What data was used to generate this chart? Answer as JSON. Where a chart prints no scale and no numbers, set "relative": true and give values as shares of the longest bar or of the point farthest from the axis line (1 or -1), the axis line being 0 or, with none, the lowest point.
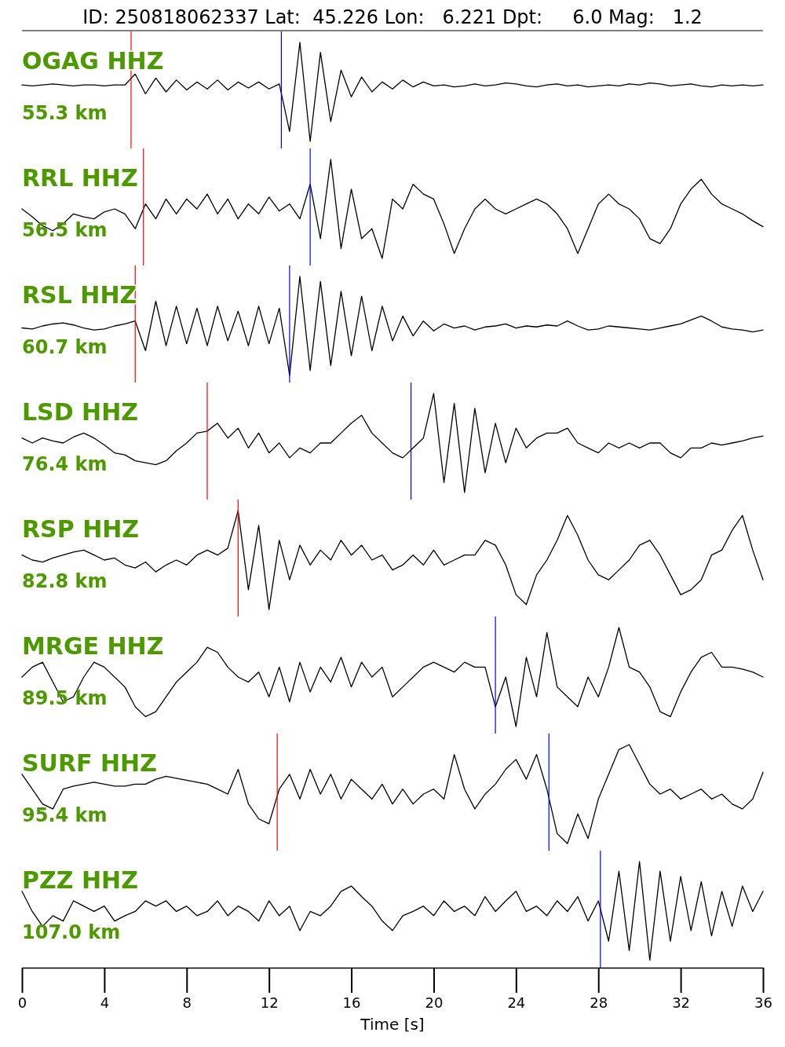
{
  "chart_data": [
    {
      "type": "line",
      "relative": true,
      "title": "OGAG HHZ",
      "subtitle": "55.3 km",
      "annotations": [
        "ID: 250818062337 Lat:  45.226 Lon:   6.221 Dpt:     6.0 Mag:   1.2"
      ],
      "tick_labels": false,
      "xlim": [
        0,
        36
      ],
      "x": [
        0,
        0.5,
        1,
        1.5,
        2,
        2.5,
        3,
        3.5,
        4,
        4.5,
        5,
        5.5,
        6,
        6.5,
        7,
        7.5,
        8,
        8.5,
        9,
        9.5,
        10,
        10.5,
        11,
        11.5,
        12,
        12.5,
        13,
        13.5,
        14,
        14.5,
        15,
        15.5,
        16,
        16.5,
        17,
        17.5,
        18,
        18.5,
        19,
        19.5,
        20,
        20.5,
        21,
        21.5,
        22,
        22.5,
        23,
        23.5,
        24,
        24.5,
        25,
        25.5,
        26,
        26.5,
        27,
        27.5,
        28,
        28.5,
        29,
        29.5,
        30,
        30.5,
        31,
        31.5,
        32,
        32.5,
        33,
        33.5,
        34,
        34.5,
        35,
        35.5,
        36
      ],
      "series": [
        {
          "color": "#000000",
          "values": [
            0.57,
            0.56,
            0.57,
            0.58,
            0.57,
            0.56,
            0.57,
            0.57,
            0.56,
            0.57,
            0.57,
            0.68,
            0.48,
            0.64,
            0.5,
            0.62,
            0.52,
            0.6,
            0.53,
            0.62,
            0.52,
            0.6,
            0.54,
            0.6,
            0.53,
            0.58,
            0.1,
            1,
            0,
            0.9,
            0.2,
            0.72,
            0.45,
            0.65,
            0.5,
            0.6,
            0.53,
            0.62,
            0.55,
            0.6,
            0.56,
            0.57,
            0.55,
            0.56,
            0.58,
            0.56,
            0.57,
            0.59,
            0.58,
            0.56,
            0.55,
            0.57,
            0.58,
            0.56,
            0.57,
            0.55,
            0.56,
            0.57,
            0.56,
            0.58,
            0.57,
            0.59,
            0.58,
            0.56,
            0.57,
            0.58,
            0.56,
            0.55,
            0.57,
            0.56,
            0.57,
            0.56,
            0.57
          ]
        }
      ],
      "ref_lines": [
        {
          "axis": "x",
          "value": 5.3,
          "color": "#ff0000"
        },
        {
          "axis": "x",
          "value": 12.6,
          "color": "#0000ff"
        }
      ]
    },
    {
      "type": "line",
      "relative": true,
      "title": "RRL HHZ",
      "subtitle": "56.5 km",
      "tick_labels": false,
      "xlim": [
        0,
        36
      ],
      "x": [
        0,
        0.5,
        1,
        1.5,
        2,
        2.5,
        3,
        3.5,
        4,
        4.5,
        5,
        5.5,
        6,
        6.5,
        7,
        7.5,
        8,
        8.5,
        9,
        9.5,
        10,
        10.5,
        11,
        11.5,
        12,
        12.5,
        13,
        13.5,
        14,
        14.5,
        15,
        15.5,
        16,
        16.5,
        17,
        17.5,
        18,
        18.5,
        19,
        19.5,
        20,
        20.5,
        21,
        21.5,
        22,
        22.5,
        23,
        23.5,
        24,
        24.5,
        25,
        25.5,
        26,
        26.5,
        27,
        27.5,
        28,
        28.5,
        29,
        29.5,
        30,
        30.5,
        31,
        31.5,
        32,
        32.5,
        33,
        33.5,
        34,
        34.5,
        35,
        35.5,
        36
      ],
      "series": [
        {
          "color": "#000000",
          "values": [
            0.5,
            0.42,
            0.33,
            0.28,
            0.35,
            0.45,
            0.42,
            0.4,
            0.47,
            0.5,
            0.45,
            0.3,
            0.55,
            0.4,
            0.6,
            0.45,
            0.6,
            0.5,
            0.65,
            0.45,
            0.6,
            0.4,
            0.55,
            0.45,
            0.62,
            0.48,
            0.55,
            0.4,
            0.75,
            0.2,
            1,
            0.1,
            0.7,
            0.2,
            0.3,
            0,
            0.6,
            0.5,
            0.75,
            0.65,
            0.6,
            0.35,
            0.05,
            0.3,
            0.5,
            0.6,
            0.5,
            0.45,
            0.5,
            0.55,
            0.6,
            0.55,
            0.45,
            0.3,
            0.05,
            0.3,
            0.55,
            0.65,
            0.55,
            0.5,
            0.4,
            0.2,
            0.15,
            0.3,
            0.55,
            0.7,
            0.8,
            0.65,
            0.55,
            0.5,
            0.45,
            0.38,
            0.32
          ]
        }
      ],
      "ref_lines": [
        {
          "axis": "x",
          "value": 5.9,
          "color": "#ff0000"
        },
        {
          "axis": "x",
          "value": 14,
          "color": "#0000ff"
        }
      ]
    },
    {
      "type": "line",
      "relative": true,
      "title": "RSL HHZ",
      "subtitle": "60.7 km",
      "tick_labels": false,
      "xlim": [
        0,
        36
      ],
      "x": [
        0,
        0.5,
        1,
        1.5,
        2,
        2.5,
        3,
        3.5,
        4,
        4.5,
        5,
        5.5,
        6,
        6.5,
        7,
        7.5,
        8,
        8.5,
        9,
        9.5,
        10,
        10.5,
        11,
        11.5,
        12,
        12.5,
        13,
        13.5,
        14,
        14.5,
        15,
        15.5,
        16,
        16.5,
        17,
        17.5,
        18,
        18.5,
        19,
        19.5,
        20,
        20.5,
        21,
        21.5,
        22,
        22.5,
        23,
        23.5,
        24,
        24.5,
        25,
        25.5,
        26,
        26.5,
        27,
        27.5,
        28,
        28.5,
        29,
        29.5,
        30,
        30.5,
        31,
        31.5,
        32,
        32.5,
        33,
        33.5,
        34,
        34.5,
        35,
        35.5,
        36
      ],
      "series": [
        {
          "color": "#000000",
          "values": [
            0.48,
            0.47,
            0.5,
            0.52,
            0.53,
            0.51,
            0.48,
            0.46,
            0.47,
            0.5,
            0.52,
            0.55,
            0.25,
            0.75,
            0.3,
            0.7,
            0.32,
            0.68,
            0.3,
            0.7,
            0.35,
            0.65,
            0.3,
            0.7,
            0.32,
            0.68,
            0,
            1,
            0.05,
            0.95,
            0.1,
            0.85,
            0.2,
            0.8,
            0.25,
            0.7,
            0.35,
            0.6,
            0.4,
            0.55,
            0.45,
            0.52,
            0.48,
            0.5,
            0.46,
            0.49,
            0.5,
            0.52,
            0.48,
            0.5,
            0.49,
            0.51,
            0.5,
            0.55,
            0.5,
            0.46,
            0.47,
            0.5,
            0.49,
            0.48,
            0.47,
            0.46,
            0.48,
            0.5,
            0.52,
            0.56,
            0.6,
            0.55,
            0.49,
            0.47,
            0.46,
            0.44,
            0.46
          ]
        }
      ],
      "ref_lines": [
        {
          "axis": "x",
          "value": 5.5,
          "color": "#ff0000"
        },
        {
          "axis": "x",
          "value": 13,
          "color": "#0000ff"
        }
      ]
    },
    {
      "type": "line",
      "relative": true,
      "title": "LSD HHZ",
      "subtitle": "76.4 km",
      "tick_labels": false,
      "xlim": [
        0,
        36
      ],
      "x": [
        0,
        0.5,
        1,
        1.5,
        2,
        2.5,
        3,
        3.5,
        4,
        4.5,
        5,
        5.5,
        6,
        6.5,
        7,
        7.5,
        8,
        8.5,
        9,
        9.5,
        10,
        10.5,
        11,
        11.5,
        12,
        12.5,
        13,
        13.5,
        14,
        14.5,
        15,
        15.5,
        16,
        16.5,
        17,
        17.5,
        18,
        18.5,
        19,
        19.5,
        20,
        20.5,
        21,
        21.5,
        22,
        22.5,
        23,
        23.5,
        24,
        24.5,
        25,
        25.5,
        26,
        26.5,
        27,
        27.5,
        28,
        28.5,
        29,
        29.5,
        30,
        30.5,
        31,
        31.5,
        32,
        32.5,
        33,
        33.5,
        34,
        34.5,
        35,
        35.5,
        36
      ],
      "series": [
        {
          "color": "#000000",
          "values": [
            0.55,
            0.5,
            0.55,
            0.52,
            0.5,
            0.56,
            0.6,
            0.55,
            0.48,
            0.4,
            0.38,
            0.32,
            0.3,
            0.28,
            0.32,
            0.42,
            0.5,
            0.6,
            0.62,
            0.7,
            0.55,
            0.65,
            0.45,
            0.6,
            0.4,
            0.5,
            0.35,
            0.45,
            0.4,
            0.5,
            0.5,
            0.6,
            0.7,
            0.78,
            0.6,
            0.5,
            0.4,
            0.35,
            0.45,
            0.55,
            1,
            0.1,
            0.9,
            0,
            0.85,
            0.2,
            0.7,
            0.3,
            0.65,
            0.45,
            0.55,
            0.6,
            0.6,
            0.65,
            0.5,
            0.45,
            0.4,
            0.5,
            0.45,
            0.5,
            0.45,
            0.5,
            0.5,
            0.4,
            0.35,
            0.45,
            0.45,
            0.5,
            0.48,
            0.5,
            0.52,
            0.55,
            0.57
          ]
        }
      ],
      "ref_lines": [
        {
          "axis": "x",
          "value": 9,
          "color": "#ff0000"
        },
        {
          "axis": "x",
          "value": 18.9,
          "color": "#0000ff"
        }
      ]
    },
    {
      "type": "line",
      "relative": true,
      "title": "RSP HHZ",
      "subtitle": "82.8 km",
      "tick_labels": false,
      "xlim": [
        0,
        36
      ],
      "x": [
        0,
        0.5,
        1,
        1.5,
        2,
        2.5,
        3,
        3.5,
        4,
        4.5,
        5,
        5.5,
        6,
        6.5,
        7,
        7.5,
        8,
        8.5,
        9,
        9.5,
        10,
        10.5,
        11,
        11.5,
        12,
        12.5,
        13,
        13.5,
        14,
        14.5,
        15,
        15.5,
        16,
        16.5,
        17,
        17.5,
        18,
        18.5,
        19,
        19.5,
        20,
        20.5,
        21,
        21.5,
        22,
        22.5,
        23,
        23.5,
        24,
        24.5,
        25,
        25.5,
        26,
        26.5,
        27,
        27.5,
        28,
        28.5,
        29,
        29.5,
        30,
        30.5,
        31,
        31.5,
        32,
        32.5,
        33,
        33.5,
        34,
        34.5,
        35,
        35.5,
        36
      ],
      "series": [
        {
          "color": "#000000",
          "values": [
            0.55,
            0.5,
            0.48,
            0.52,
            0.55,
            0.58,
            0.6,
            0.55,
            0.5,
            0.52,
            0.45,
            0.42,
            0.48,
            0.38,
            0.45,
            0.5,
            0.45,
            0.55,
            0.6,
            0.55,
            0.62,
            1,
            0.2,
            0.85,
            0,
            0.7,
            0.3,
            0.65,
            0.45,
            0.6,
            0.5,
            0.7,
            0.55,
            0.65,
            0.5,
            0.55,
            0.4,
            0.45,
            0.55,
            0.45,
            0.6,
            0.45,
            0.5,
            0.55,
            0.55,
            0.7,
            0.65,
            0.45,
            0.15,
            0.05,
            0.35,
            0.5,
            0.7,
            0.95,
            0.75,
            0.5,
            0.35,
            0.3,
            0.4,
            0.5,
            0.65,
            0.7,
            0.55,
            0.35,
            0.15,
            0.2,
            0.3,
            0.55,
            0.6,
            0.8,
            0.95,
            0.6,
            0.3
          ]
        }
      ],
      "ref_lines": [
        {
          "axis": "x",
          "value": 10.5,
          "color": "#ff0000"
        }
      ]
    },
    {
      "type": "line",
      "relative": true,
      "title": "MRGE HHZ",
      "subtitle": "89.5 km",
      "tick_labels": false,
      "xlim": [
        0,
        36
      ],
      "x": [
        0,
        0.5,
        1,
        1.5,
        2,
        2.5,
        3,
        3.5,
        4,
        4.5,
        5,
        5.5,
        6,
        6.5,
        7,
        7.5,
        8,
        8.5,
        9,
        9.5,
        10,
        10.5,
        11,
        11.5,
        12,
        12.5,
        13,
        13.5,
        14,
        14.5,
        15,
        15.5,
        16,
        16.5,
        17,
        17.5,
        18,
        18.5,
        19,
        19.5,
        20,
        20.5,
        21,
        21.5,
        22,
        22.5,
        23,
        23.5,
        24,
        24.5,
        25,
        25.5,
        26,
        26.5,
        27,
        27.5,
        28,
        28.5,
        29,
        29.5,
        30,
        30.5,
        31,
        31.5,
        32,
        32.5,
        33,
        33.5,
        34,
        34.5,
        35,
        35.5,
        36
      ],
      "series": [
        {
          "color": "#000000",
          "values": [
            0.5,
            0.6,
            0.65,
            0.45,
            0.25,
            0.3,
            0.5,
            0.65,
            0.6,
            0.5,
            0.4,
            0.2,
            0.1,
            0.15,
            0.3,
            0.45,
            0.55,
            0.65,
            0.8,
            0.75,
            0.6,
            0.5,
            0.45,
            0.55,
            0.3,
            0.6,
            0.25,
            0.65,
            0.35,
            0.6,
            0.45,
            0.7,
            0.4,
            0.65,
            0.5,
            0.6,
            0.3,
            0.4,
            0.5,
            0.6,
            0.65,
            0.6,
            0.55,
            0.65,
            0.6,
            0.6,
            0.2,
            0.5,
            0,
            0.7,
            0.3,
            0.95,
            0.4,
            0.3,
            0.2,
            0.5,
            0.3,
            0.6,
            1,
            0.6,
            0.55,
            0.4,
            0.15,
            0.1,
            0.35,
            0.55,
            0.7,
            0.75,
            0.6,
            0.6,
            0.58,
            0.55,
            0.5
          ]
        }
      ],
      "ref_lines": [
        {
          "axis": "x",
          "value": 23,
          "color": "#0000ff"
        }
      ]
    },
    {
      "type": "line",
      "relative": true,
      "title": "SURF HHZ",
      "subtitle": "95.4 km",
      "tick_labels": false,
      "xlim": [
        0,
        36
      ],
      "x": [
        0,
        0.5,
        1,
        1.5,
        2,
        2.5,
        3,
        3.5,
        4,
        4.5,
        5,
        5.5,
        6,
        6.5,
        7,
        7.5,
        8,
        8.5,
        9,
        9.5,
        10,
        10.5,
        11,
        11.5,
        12,
        12.5,
        13,
        13.5,
        14,
        14.5,
        15,
        15.5,
        16,
        16.5,
        17,
        17.5,
        18,
        18.5,
        19,
        19.5,
        20,
        20.5,
        21,
        21.5,
        22,
        22.5,
        23,
        23.5,
        24,
        24.5,
        25,
        25.5,
        26,
        26.5,
        27,
        27.5,
        28,
        28.5,
        29,
        29.5,
        30,
        30.5,
        31,
        31.5,
        32,
        32.5,
        33,
        33.5,
        34,
        34.5,
        35,
        35.5,
        36
      ],
      "series": [
        {
          "color": "#000000",
          "values": [
            0.7,
            0.55,
            0.4,
            0.35,
            0.55,
            0.58,
            0.6,
            0.62,
            0.6,
            0.58,
            0.58,
            0.6,
            0.6,
            0.65,
            0.68,
            0.66,
            0.64,
            0.62,
            0.6,
            0.55,
            0.5,
            0.75,
            0.4,
            0.25,
            0.2,
            0.55,
            0.7,
            0.45,
            0.75,
            0.5,
            0.7,
            0.45,
            0.65,
            0.55,
            0.45,
            0.6,
            0.4,
            0.55,
            0.4,
            0.5,
            0.55,
            0.45,
            0.9,
            0.55,
            0.35,
            0.5,
            0.6,
            0.75,
            0.85,
            0.65,
            0.9,
            0.55,
            0.1,
            0,
            0.3,
            0.05,
            0.45,
            0.7,
            0.95,
            1,
            0.8,
            0.6,
            0.5,
            0.55,
            0.45,
            0.5,
            0.55,
            0.45,
            0.5,
            0.4,
            0.35,
            0.45,
            0.72
          ]
        }
      ],
      "ref_lines": [
        {
          "axis": "x",
          "value": 12.4,
          "color": "#ff0000"
        },
        {
          "axis": "x",
          "value": 25.6,
          "color": "#0000ff"
        }
      ]
    },
    {
      "type": "line",
      "relative": true,
      "title": "PZZ HHZ",
      "subtitle": "107.0 km",
      "xlabel": "Time [s]",
      "tick_labels": "x",
      "xlim": [
        0,
        36
      ],
      "xticks": [
        0,
        4,
        8,
        12,
        16,
        20,
        24,
        28,
        32,
        36
      ],
      "x": [
        0,
        0.5,
        1,
        1.5,
        2,
        2.5,
        3,
        3.5,
        4,
        4.5,
        5,
        5.5,
        6,
        6.5,
        7,
        7.5,
        8,
        8.5,
        9,
        9.5,
        10,
        10.5,
        11,
        11.5,
        12,
        12.5,
        13,
        13.5,
        14,
        14.5,
        15,
        15.5,
        16,
        16.5,
        17,
        17.5,
        18,
        18.5,
        19,
        19.5,
        20,
        20.5,
        21,
        21.5,
        22,
        22.5,
        23,
        23.5,
        24,
        24.5,
        25,
        25.5,
        26,
        26.5,
        27,
        27.5,
        28,
        28.5,
        29,
        29.5,
        30,
        30.5,
        31,
        31.5,
        32,
        32.5,
        33,
        33.5,
        34,
        34.5,
        35,
        35.5,
        36
      ],
      "series": [
        {
          "color": "#000000",
          "values": [
            0.72,
            0.53,
            0.39,
            0.49,
            0.44,
            0.63,
            0.58,
            0.53,
            0.58,
            0.44,
            0.49,
            0.53,
            0.63,
            0.58,
            0.63,
            0.53,
            0.58,
            0.49,
            0.53,
            0.63,
            0.49,
            0.58,
            0.53,
            0.44,
            0.63,
            0.49,
            0.58,
            0.35,
            0.53,
            0.49,
            0.58,
            0.72,
            0.77,
            0.67,
            0.58,
            0.44,
            0.35,
            0.49,
            0.53,
            0.58,
            0.49,
            0.63,
            0.53,
            0.58,
            0.49,
            0.67,
            0.53,
            0.63,
            0.72,
            0.53,
            0.58,
            0.49,
            0.63,
            0.53,
            0.67,
            0.44,
            0.63,
            0.25,
            0.91,
            0.16,
            1,
            0.07,
            0.91,
            0.25,
            0.86,
            0.35,
            0.81,
            0.3,
            0.72,
            0.39,
            0.77,
            0.53,
            0.72
          ]
        }
      ],
      "ref_lines": [
        {
          "axis": "x",
          "value": 28.1,
          "color": "#0000ff"
        }
      ]
    }
  ]
}
